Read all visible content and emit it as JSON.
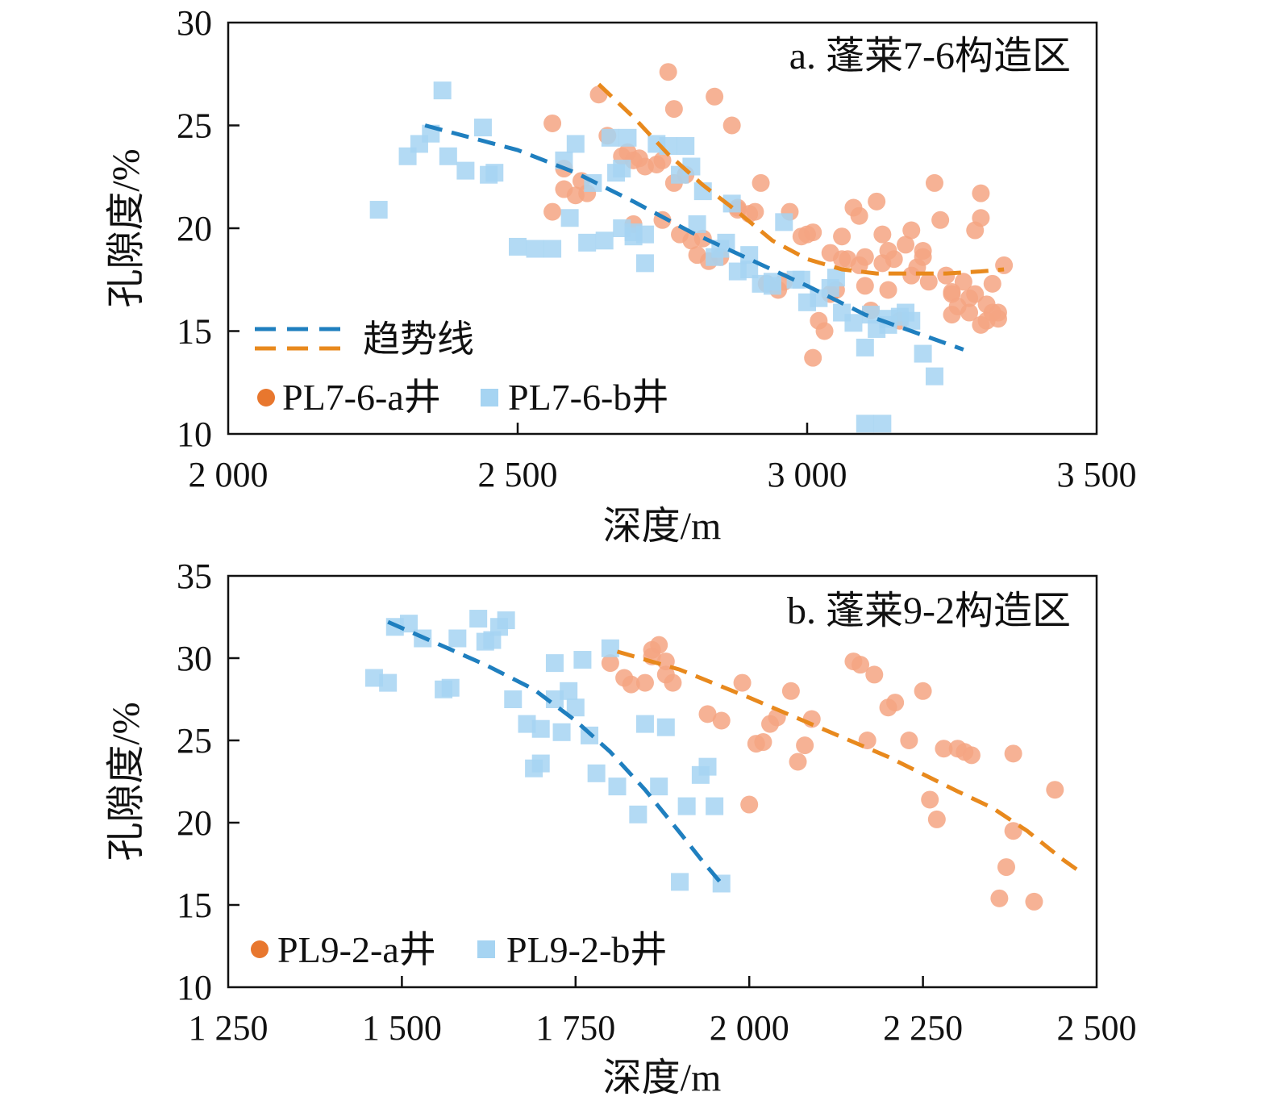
{
  "chart_data": [
    {
      "type": "scatter",
      "title": "a. 蓬莱7-6构造区",
      "xlabel": "深度/m",
      "ylabel": "孔隙度/%",
      "xlim": [
        2000,
        3500
      ],
      "ylim": [
        10,
        30
      ],
      "x_ticks": [
        2000,
        2500,
        3000,
        3500
      ],
      "x_tick_labels": [
        "2 000",
        "2 500",
        "3 000",
        "3 500"
      ],
      "y_ticks": [
        10,
        15,
        20,
        25,
        30
      ],
      "y_tick_labels": [
        "10",
        "15",
        "20",
        "25",
        "30"
      ],
      "legend_position": "bottom-left",
      "trend_label": "趋势线",
      "series": [
        {
          "name": "PL7-6-a井",
          "marker": "circle",
          "color": "#f4a582",
          "legend_color": "#e8772e",
          "x": [
            2640,
            2655,
            2690,
            2720,
            2710,
            2750,
            2770,
            2750,
            2780,
            2800,
            2810,
            2820,
            2830,
            2850,
            2880,
            2880,
            2900,
            2910,
            2930,
            2950,
            2960,
            2970,
            2990,
            3000,
            3010,
            3020,
            3030,
            3040,
            3050,
            3060,
            3070,
            3080,
            3090,
            3100,
            3110,
            3120,
            3130,
            3140,
            3150,
            3160,
            3170,
            3180,
            3190,
            3200,
            3220,
            3230,
            3240,
            3250,
            3260,
            3270,
            3280,
            3290,
            3300,
            3300,
            3310,
            3310,
            3320,
            3320,
            3330,
            3330,
            3340,
            2680,
            2700,
            2740,
            2760,
            2840,
            2870,
            2920,
            3010,
            3040,
            3060,
            3090,
            3140,
            3180,
            3210,
            3250,
            3280,
            2560,
            2580,
            2610,
            2620,
            2580,
            2700,
            2790,
            2770,
            2560,
            2600,
            3100,
            3130,
            3200,
            3250,
            3300,
            3290
          ],
          "y": [
            26.5,
            24.5,
            23.7,
            23.0,
            23.4,
            23.3,
            22.2,
            20.4,
            19.7,
            19.4,
            18.7,
            19.5,
            18.4,
            18.6,
            20.9,
            21.0,
            20.7,
            20.8,
            17.3,
            17.0,
            17.4,
            20.8,
            19.6,
            19.7,
            13.7,
            15.5,
            15.0,
            16.8,
            17.0,
            19.6,
            18.5,
            21.0,
            20.6,
            18.6,
            16.0,
            21.3,
            19.7,
            17.0,
            18.5,
            15.5,
            19.2,
            19.9,
            18.1,
            18.9,
            22.2,
            20.4,
            17.7,
            16.8,
            16.2,
            17.4,
            15.9,
            19.9,
            20.5,
            21.7,
            16.3,
            15.5,
            17.3,
            15.9,
            15.6,
            15.9,
            18.2,
            23.5,
            23.3,
            23.1,
            27.6,
            26.4,
            25.0,
            22.2,
            19.8,
            18.8,
            18.5,
            18.2,
            18.9,
            17.7,
            17.4,
            16.9,
            16.6,
            25.1,
            22.9,
            22.3,
            21.7,
            21.9,
            20.2,
            22.6,
            25.8,
            20.8,
            21.6,
            17.2,
            18.3,
            18.6,
            15.8,
            15.3,
            16.8
          ]
        },
        {
          "name": "PL7-6-b井",
          "marker": "square",
          "color": "#a6d4f2",
          "legend_color": "#a6d4f2",
          "x": [
            2260,
            2310,
            2330,
            2350,
            2370,
            2380,
            2410,
            2440,
            2450,
            2460,
            2580,
            2600,
            2620,
            2650,
            2660,
            2670,
            2680,
            2690,
            2700,
            2700,
            2720,
            2740,
            2760,
            2780,
            2790,
            2800,
            2820,
            2840,
            2860,
            2870,
            2880,
            2900,
            2920,
            2940,
            2960,
            2980,
            3000,
            3020,
            3040,
            3060,
            3080,
            3100,
            3120,
            3140,
            3160,
            3180,
            3200,
            3220,
            3100,
            3130,
            2500,
            2530,
            2560,
            2590,
            2630,
            2680,
            2720,
            2810,
            2850,
            2900,
            2940,
            2990,
            3050,
            3110,
            3140,
            3170
          ],
          "y": [
            20.9,
            23.5,
            24.1,
            24.6,
            26.7,
            23.5,
            22.8,
            24.9,
            22.6,
            22.7,
            23.3,
            24.1,
            19.3,
            19.4,
            24.4,
            22.7,
            22.9,
            24.4,
            19.8,
            19.6,
            18.3,
            24.1,
            24.0,
            22.6,
            24.0,
            23.0,
            21.8,
            18.6,
            19.3,
            21.2,
            17.9,
            18.7,
            17.3,
            17.2,
            20.3,
            17.5,
            16.4,
            16.6,
            17.1,
            15.9,
            15.4,
            14.2,
            15.1,
            15.3,
            15.7,
            15.5,
            13.9,
            12.8,
            10.5,
            10.5,
            19.1,
            19.0,
            19.0,
            20.5,
            22.2,
            20.0,
            19.7,
            20.2,
            19.0,
            18.0,
            17.4,
            17.5,
            17.6,
            15.8,
            15.6,
            15.9
          ]
        }
      ],
      "trend_lines": [
        {
          "color": "#1f7fbf",
          "x": [
            2340,
            2500,
            2600,
            2700,
            2800,
            2900,
            3000,
            3100,
            3200,
            3270
          ],
          "y": [
            25.0,
            23.8,
            22.7,
            21.3,
            19.8,
            18.5,
            17.2,
            15.8,
            14.8,
            14.1
          ]
        },
        {
          "color": "#e8891d",
          "x": [
            2640,
            2700,
            2760,
            2820,
            2880,
            2940,
            3000,
            3060,
            3120,
            3180,
            3240,
            3300,
            3340
          ],
          "y": [
            27.0,
            25.4,
            23.6,
            22.1,
            20.8,
            19.4,
            18.5,
            18.0,
            17.8,
            17.8,
            17.8,
            17.9,
            18.0
          ]
        }
      ]
    },
    {
      "type": "scatter",
      "title": "b. 蓬莱9-2构造区",
      "xlabel": "深度/m",
      "ylabel": "孔隙度/%",
      "xlim": [
        1250,
        2500
      ],
      "ylim": [
        10,
        35
      ],
      "x_ticks": [
        1250,
        1500,
        1750,
        2000,
        2250,
        2500
      ],
      "x_tick_labels": [
        "1 250",
        "1 500",
        "1 750",
        "2 000",
        "2 250",
        "2 500"
      ],
      "y_ticks": [
        10,
        15,
        20,
        25,
        30,
        35
      ],
      "y_tick_labels": [
        "10",
        "15",
        "20",
        "25",
        "30",
        "35"
      ],
      "legend_position": "bottom-left",
      "series": [
        {
          "name": "PL9-2-a井",
          "marker": "circle",
          "color": "#f4a582",
          "legend_color": "#e8772e",
          "x": [
            1800,
            1820,
            1830,
            1850,
            1860,
            1870,
            1880,
            1890,
            1940,
            1960,
            1990,
            2000,
            2010,
            2020,
            2030,
            2040,
            2060,
            2070,
            2080,
            2090,
            2150,
            2160,
            2170,
            2180,
            2200,
            2210,
            2230,
            2250,
            2260,
            2270,
            2280,
            2300,
            2310,
            2320,
            2360,
            2370,
            2380,
            2410,
            2440,
            2380,
            1860,
            1880
          ],
          "y": [
            29.7,
            28.8,
            28.4,
            28.5,
            30.1,
            30.8,
            29.8,
            28.5,
            26.6,
            26.2,
            28.5,
            21.1,
            24.8,
            24.9,
            26.0,
            26.4,
            28.0,
            23.7,
            24.7,
            26.3,
            29.8,
            29.6,
            25.0,
            29.0,
            27.0,
            27.3,
            25.0,
            28.0,
            21.4,
            20.2,
            24.5,
            24.5,
            24.3,
            24.1,
            15.4,
            17.3,
            19.5,
            15.2,
            22.0,
            24.2,
            30.5,
            29.0
          ]
        },
        {
          "name": "PL9-2-b井",
          "marker": "square",
          "color": "#a6d4f2",
          "legend_color": "#a6d4f2",
          "x": [
            1460,
            1480,
            1490,
            1510,
            1530,
            1560,
            1570,
            1580,
            1610,
            1620,
            1630,
            1640,
            1650,
            1660,
            1680,
            1690,
            1700,
            1720,
            1730,
            1740,
            1760,
            1770,
            1800,
            1810,
            1840,
            1850,
            1870,
            1880,
            1900,
            1910,
            1930,
            1940,
            1950,
            1960,
            1700,
            1720,
            1750,
            1780
          ],
          "y": [
            28.8,
            28.5,
            31.9,
            32.1,
            31.2,
            28.1,
            28.2,
            31.2,
            32.4,
            31.0,
            31.1,
            31.9,
            32.3,
            27.5,
            26.0,
            23.3,
            23.6,
            29.7,
            25.5,
            28.0,
            29.9,
            25.3,
            30.6,
            22.2,
            20.5,
            26.0,
            22.2,
            25.8,
            16.4,
            21.0,
            22.9,
            23.4,
            21.0,
            16.3,
            25.7,
            27.5,
            27.0,
            23.0
          ]
        }
      ],
      "trend_lines": [
        {
          "color": "#1f7fbf",
          "x": [
            1480,
            1550,
            1620,
            1690,
            1750,
            1800,
            1850,
            1900,
            1930,
            1960
          ],
          "y": [
            32.2,
            30.9,
            29.6,
            28.1,
            26.2,
            24.3,
            22.0,
            19.4,
            17.8,
            16.3
          ]
        },
        {
          "color": "#e8891d",
          "x": [
            1810,
            1900,
            2000,
            2100,
            2200,
            2300,
            2350,
            2400,
            2450,
            2480
          ],
          "y": [
            30.4,
            29.3,
            27.6,
            25.8,
            24.0,
            21.9,
            20.9,
            19.5,
            17.8,
            16.9
          ]
        }
      ]
    }
  ]
}
